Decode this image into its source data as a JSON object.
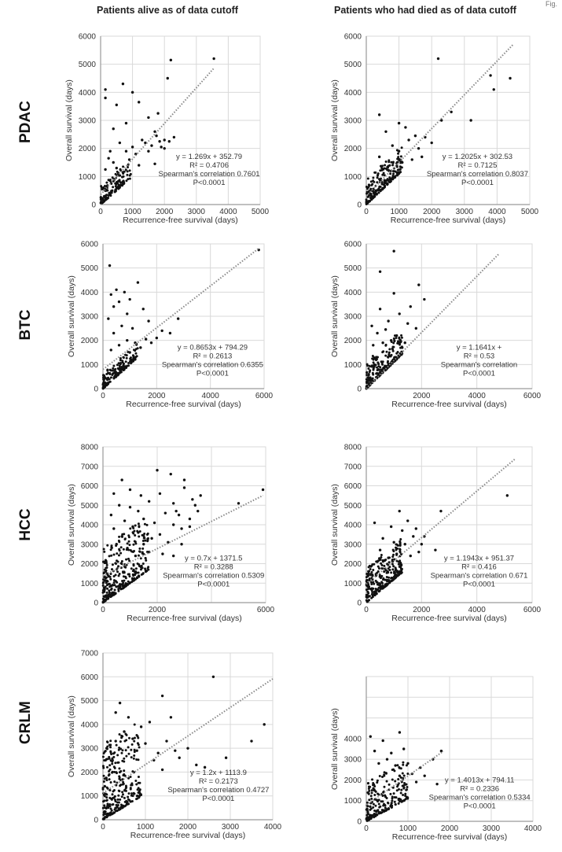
{
  "figure": {
    "label": "Fig.",
    "column_titles": [
      "Patients alive as of data cutoff",
      "Patients who had died as of data cutoff"
    ],
    "row_labels": [
      "PDAC",
      "BTC",
      "HCC",
      "CRLM"
    ],
    "colors": {
      "points": "#111111",
      "trendline": "#8a8a8a",
      "grid": "#d9d9d9",
      "axis": "#9a9a9a"
    }
  },
  "chart_data": [
    {
      "type": "scatter",
      "row": "PDAC",
      "column": "Patients alive as of data cutoff",
      "xlabel": "Recurrence-free survival (days)",
      "ylabel": "Overall survival (days)",
      "xlim": [
        0,
        5000
      ],
      "ylim": [
        0,
        6000
      ],
      "xticks": [
        0,
        1000,
        2000,
        3000,
        4000,
        5000
      ],
      "yticks": [
        0,
        1000,
        2000,
        3000,
        4000,
        5000,
        6000
      ],
      "grid": true,
      "trendline": {
        "slope": 1.269,
        "intercept": 352.79,
        "x_range": [
          0,
          3550
        ]
      },
      "annotations": [
        "y = 1.269x + 352.79",
        "R² = 0.4706",
        "Spearman's correlation 0.7601",
        "P<0.0001"
      ],
      "points": [
        [
          2200,
          5150
        ],
        [
          3550,
          5200
        ],
        [
          2100,
          4500
        ],
        [
          150,
          4100
        ],
        [
          150,
          3800
        ],
        [
          700,
          4300
        ],
        [
          1000,
          4000
        ],
        [
          500,
          3550
        ],
        [
          1200,
          3650
        ],
        [
          1500,
          3100
        ],
        [
          1800,
          3250
        ],
        [
          800,
          2900
        ],
        [
          400,
          2700
        ],
        [
          1300,
          2300
        ],
        [
          1700,
          2600
        ],
        [
          2000,
          2300
        ],
        [
          2300,
          2400
        ],
        [
          2150,
          2250
        ],
        [
          600,
          2200
        ],
        [
          1000,
          2050
        ],
        [
          1500,
          1900
        ],
        [
          300,
          1900
        ],
        [
          900,
          1600
        ],
        [
          400,
          1500
        ],
        [
          1200,
          1400
        ],
        [
          150,
          1250
        ],
        [
          700,
          1150
        ],
        [
          1900,
          2050
        ],
        [
          1600,
          2100
        ],
        [
          1100,
          1800
        ],
        [
          1700,
          1450
        ],
        [
          2000,
          2000
        ],
        [
          1850,
          2250
        ],
        [
          500,
          1300
        ],
        [
          250,
          1650
        ],
        [
          800,
          1900
        ],
        [
          1400,
          2200
        ],
        [
          1750,
          2450
        ]
      ],
      "dense_band": {
        "x_max": 950,
        "slope": 1.0,
        "spread": 650,
        "count": 150
      }
    },
    {
      "type": "scatter",
      "row": "PDAC",
      "column": "Patients who had died as of data cutoff",
      "xlabel": "Recurrence-free survival (days)",
      "ylabel": "Overall survival (days)",
      "xlim": [
        0,
        5000
      ],
      "ylim": [
        0,
        6000
      ],
      "xticks": [
        0,
        1000,
        2000,
        3000,
        4000,
        5000
      ],
      "yticks": [
        0,
        1000,
        2000,
        3000,
        4000,
        5000,
        6000
      ],
      "xtick_labels": [
        "0",
        "1000",
        "2000",
        "3000",
        "4000",
        "5000"
      ],
      "grid": true,
      "trendline": {
        "slope": 1.2025,
        "intercept": 302.53,
        "x_range": [
          0,
          4500
        ]
      },
      "annotations": [
        "y = 1.2025x + 302.53",
        "R² = 0.7125",
        "Spearman's correlation 0.8037",
        "P<0.0001"
      ],
      "points": [
        [
          2200,
          5200
        ],
        [
          3800,
          4600
        ],
        [
          4400,
          4500
        ],
        [
          3900,
          4100
        ],
        [
          2600,
          3300
        ],
        [
          3200,
          3000
        ],
        [
          400,
          3200
        ],
        [
          1000,
          2900
        ],
        [
          1200,
          2750
        ],
        [
          600,
          2600
        ],
        [
          1500,
          2450
        ],
        [
          1800,
          2400
        ],
        [
          2000,
          2200
        ],
        [
          800,
          2100
        ],
        [
          1300,
          2300
        ],
        [
          1600,
          2000
        ],
        [
          2300,
          3000
        ],
        [
          1000,
          1900
        ],
        [
          1700,
          1700
        ],
        [
          400,
          1700
        ],
        [
          1100,
          1500
        ],
        [
          1400,
          1600
        ]
      ],
      "dense_band": {
        "x_max": 1100,
        "slope": 1.1,
        "spread": 900,
        "count": 220
      }
    },
    {
      "type": "scatter",
      "row": "BTC",
      "column": "Patients alive as of data cutoff",
      "xlabel": "Recurrence-free survival (days)",
      "ylabel": "Overall survival (days)",
      "xlim": [
        0,
        6000
      ],
      "ylim": [
        0,
        6000
      ],
      "xticks": [
        0,
        2000,
        4000,
        6000
      ],
      "yticks": [
        0,
        1000,
        2000,
        3000,
        4000,
        5000,
        6000
      ],
      "grid": true,
      "trendline": {
        "slope": 0.8653,
        "intercept": 794.29,
        "x_range": [
          0,
          5800
        ]
      },
      "annotations": [
        "y = 0.8653x + 794.29",
        "R² = 0.2613",
        "Spearman's correlation 0.6355",
        "P<0.0001"
      ],
      "points": [
        [
          250,
          5100
        ],
        [
          5800,
          5750
        ],
        [
          1300,
          4400
        ],
        [
          500,
          4100
        ],
        [
          800,
          4000
        ],
        [
          300,
          3900
        ],
        [
          600,
          3600
        ],
        [
          1000,
          3700
        ],
        [
          400,
          3400
        ],
        [
          1500,
          3300
        ],
        [
          900,
          3100
        ],
        [
          200,
          2900
        ],
        [
          700,
          2600
        ],
        [
          1100,
          2500
        ],
        [
          1700,
          2800
        ],
        [
          2200,
          2400
        ],
        [
          2500,
          2300
        ],
        [
          2800,
          2900
        ],
        [
          400,
          2300
        ],
        [
          900,
          2000
        ],
        [
          1200,
          1900
        ],
        [
          1600,
          2050
        ],
        [
          2000,
          2100
        ],
        [
          600,
          1800
        ],
        [
          1400,
          1700
        ],
        [
          300,
          1600
        ],
        [
          1000,
          1500
        ],
        [
          1800,
          1900
        ]
      ],
      "dense_band": {
        "x_max": 1300,
        "slope": 1.0,
        "spread": 650,
        "count": 170
      }
    },
    {
      "type": "scatter",
      "row": "BTC",
      "column": "Patients who had died as of data cutoff",
      "xlabel": "Recurrence-free survival (days)",
      "ylabel": "Overall survival (days)",
      "xlim": [
        0,
        6000
      ],
      "ylim": [
        0,
        6000
      ],
      "xticks": [
        0,
        2000,
        4000,
        6000
      ],
      "yticks": [
        0,
        1000,
        2000,
        3000,
        4000,
        5000,
        6000
      ],
      "xtick_labels": [
        "",
        "2000",
        "4000",
        "6000"
      ],
      "grid": true,
      "trendline": {
        "slope": 1.1641,
        "intercept": null,
        "x_range": [
          0,
          4800
        ]
      },
      "annotations": [
        "y = 1.1641x +",
        "R² = 0.53",
        "Spearman's correlation",
        "P<0.0001"
      ],
      "points": [
        [
          1000,
          5700
        ],
        [
          500,
          4850
        ],
        [
          1900,
          4300
        ],
        [
          2100,
          3700
        ],
        [
          1000,
          3950
        ],
        [
          1600,
          3400
        ],
        [
          500,
          3300
        ],
        [
          1200,
          3100
        ],
        [
          800,
          2800
        ],
        [
          1500,
          2700
        ],
        [
          200,
          2600
        ],
        [
          1800,
          2500
        ],
        [
          700,
          2450
        ],
        [
          400,
          2300
        ],
        [
          1100,
          2200
        ],
        [
          900,
          2000
        ],
        [
          1400,
          1900
        ],
        [
          600,
          1900
        ],
        [
          1300,
          1700
        ],
        [
          250,
          1800
        ]
      ],
      "dense_band": {
        "x_max": 1300,
        "slope": 1.1,
        "spread": 1100,
        "count": 230
      }
    },
    {
      "type": "scatter",
      "row": "HCC",
      "column": "Patients alive as of data cutoff",
      "xlabel": "Recurrence-free survival (days)",
      "ylabel": "Overall survival (days)",
      "xlim": [
        0,
        6000
      ],
      "ylim": [
        0,
        8000
      ],
      "xticks": [
        0,
        2000,
        4000,
        6000
      ],
      "yticks": [
        0,
        1000,
        2000,
        3000,
        4000,
        5000,
        6000,
        7000,
        8000
      ],
      "xtick_labels": [
        "0",
        "2000",
        "",
        "6000"
      ],
      "grid": true,
      "trendline": {
        "slope": 0.7,
        "intercept": 1371.5,
        "x_range": [
          0,
          5900
        ]
      },
      "annotations": [
        "y = 0.7x + 1371.5",
        "R² = 0.3288",
        "Spearman's correlation 0.5309",
        "P<0.0001"
      ],
      "points": [
        [
          2000,
          6800
        ],
        [
          2500,
          6600
        ],
        [
          700,
          6300
        ],
        [
          3000,
          6300
        ],
        [
          3000,
          5900
        ],
        [
          5900,
          5800
        ],
        [
          5000,
          5100
        ],
        [
          3600,
          5500
        ],
        [
          3400,
          5000
        ],
        [
          1000,
          5800
        ],
        [
          1400,
          5500
        ],
        [
          2100,
          5600
        ],
        [
          1700,
          5200
        ],
        [
          2600,
          5100
        ],
        [
          1000,
          4900
        ],
        [
          400,
          5600
        ],
        [
          600,
          5000
        ],
        [
          2300,
          4600
        ],
        [
          2800,
          4500
        ],
        [
          3200,
          4300
        ],
        [
          1500,
          4300
        ],
        [
          1900,
          4100
        ],
        [
          2600,
          4000
        ],
        [
          3200,
          3900
        ],
        [
          2900,
          3800
        ],
        [
          1300,
          3600
        ],
        [
          2100,
          3500
        ],
        [
          300,
          4500
        ],
        [
          800,
          4200
        ],
        [
          1100,
          3900
        ],
        [
          1800,
          3300
        ],
        [
          2400,
          3100
        ],
        [
          2900,
          3000
        ],
        [
          1500,
          3000
        ],
        [
          700,
          3400
        ],
        [
          900,
          2800
        ],
        [
          1700,
          2600
        ],
        [
          2200,
          2500
        ],
        [
          2600,
          2400
        ],
        [
          400,
          3800
        ],
        [
          1200,
          2400
        ],
        [
          500,
          3000
        ],
        [
          3500,
          4700
        ],
        [
          3300,
          5300
        ],
        [
          1300,
          4700
        ],
        [
          2700,
          4700
        ]
      ],
      "dense_band": {
        "x_max": 1700,
        "slope": 1.0,
        "spread": 2800,
        "count": 320
      }
    },
    {
      "type": "scatter",
      "row": "HCC",
      "column": "Patients who had died as of data cutoff",
      "xlabel": "Recurrence-free survival (days)",
      "ylabel": "Overall survival (days)",
      "xlim": [
        0,
        6000
      ],
      "ylim": [
        0,
        8000
      ],
      "xticks": [
        0,
        2000,
        4000,
        6000
      ],
      "yticks": [
        0,
        1000,
        2000,
        3000,
        4000,
        5000,
        6000,
        7000,
        8000
      ],
      "grid": true,
      "trendline": {
        "slope": 1.1943,
        "intercept": 951.37,
        "x_range": [
          0,
          5400
        ]
      },
      "annotations": [
        "y = 1.1943x + 951.37",
        "R² = 0.416",
        "Spearman's correlation 0.671",
        "P<0.0001"
      ],
      "points": [
        [
          2700,
          4700
        ],
        [
          1200,
          4700
        ],
        [
          5100,
          5500
        ],
        [
          1500,
          4200
        ],
        [
          900,
          3900
        ],
        [
          300,
          4100
        ],
        [
          1800,
          3800
        ],
        [
          1300,
          3700
        ],
        [
          1700,
          3400
        ],
        [
          2100,
          3400
        ],
        [
          2500,
          2700
        ],
        [
          600,
          3300
        ],
        [
          1000,
          3100
        ],
        [
          1400,
          3000
        ],
        [
          2000,
          3000
        ],
        [
          500,
          2700
        ],
        [
          1100,
          2500
        ],
        [
          1600,
          2400
        ],
        [
          800,
          2300
        ],
        [
          400,
          2100
        ],
        [
          1200,
          2100
        ],
        [
          1900,
          2600
        ]
      ],
      "dense_band": {
        "x_max": 1300,
        "slope": 1.2,
        "spread": 1800,
        "count": 280
      }
    },
    {
      "type": "scatter",
      "row": "CRLM",
      "column": "Patients alive as of data cutoff",
      "xlabel": "Recurrence-free survival (days)",
      "ylabel": "Overall survival (days)",
      "xlim": [
        0,
        4000
      ],
      "ylim": [
        0,
        7000
      ],
      "xticks": [
        0,
        1000,
        2000,
        3000,
        4000
      ],
      "yticks": [
        0,
        1000,
        2000,
        3000,
        4000,
        5000,
        6000,
        7000
      ],
      "grid": true,
      "trendline": {
        "slope": 1.2,
        "intercept": 1113.9,
        "x_range": [
          0,
          4000
        ]
      },
      "annotations": [
        "y = 1.2x + 1113.9",
        "R² = 0.2173",
        "Spearman's correlation 0.4727",
        "P<0.0001"
      ],
      "points": [
        [
          2600,
          6000
        ],
        [
          1400,
          5200
        ],
        [
          400,
          4900
        ],
        [
          1600,
          4300
        ],
        [
          3800,
          4000
        ],
        [
          300,
          4500
        ],
        [
          600,
          4300
        ],
        [
          900,
          3900
        ],
        [
          1100,
          4100
        ],
        [
          3500,
          3300
        ],
        [
          2900,
          2600
        ],
        [
          1800,
          2600
        ],
        [
          2200,
          2300
        ],
        [
          1300,
          2800
        ],
        [
          500,
          3700
        ],
        [
          700,
          3400
        ],
        [
          1000,
          3200
        ],
        [
          1500,
          3300
        ],
        [
          800,
          2900
        ],
        [
          1200,
          2500
        ],
        [
          300,
          3300
        ],
        [
          1700,
          2900
        ],
        [
          2000,
          3000
        ],
        [
          2400,
          2200
        ],
        [
          1400,
          2100
        ]
      ],
      "dense_band": {
        "x_max": 900,
        "slope": 1.1,
        "spread": 3200,
        "count": 300
      }
    },
    {
      "type": "scatter",
      "row": "CRLM",
      "column": "Patients who had died as of data cutoff",
      "xlabel": "Recurrence-free survival (days)",
      "ylabel": "Overall survival (days)",
      "xlim": [
        0,
        4000
      ],
      "ylim": [
        0,
        7000
      ],
      "xticks": [
        0,
        1000,
        2000,
        3000,
        4000
      ],
      "yticks": [
        0,
        1000,
        2000,
        3000,
        4000,
        5000,
        6000,
        7000
      ],
      "ytick_labels": [
        "0",
        "1000",
        "2000",
        "3000",
        "4000",
        "",
        "",
        ""
      ],
      "grid": true,
      "trendline": {
        "slope": 1.4013,
        "intercept": 794.11,
        "x_range": [
          0,
          1850
        ]
      },
      "annotations": [
        "y = 1.4013x + 794.11",
        "R² = 0.2336",
        "Spearman's correlation 0.5334",
        "P<0.0001"
      ],
      "points": [
        [
          800,
          4300
        ],
        [
          100,
          4100
        ],
        [
          400,
          3900
        ],
        [
          1800,
          3400
        ],
        [
          1600,
          3000
        ],
        [
          600,
          3300
        ],
        [
          900,
          3500
        ],
        [
          200,
          3400
        ],
        [
          500,
          3000
        ],
        [
          1000,
          2800
        ],
        [
          1300,
          2600
        ],
        [
          700,
          2700
        ],
        [
          300,
          2800
        ],
        [
          1100,
          2300
        ],
        [
          1400,
          2200
        ],
        [
          800,
          2200
        ],
        [
          1700,
          1800
        ],
        [
          1200,
          1900
        ]
      ],
      "dense_band": {
        "x_max": 1000,
        "slope": 1.1,
        "spread": 1900,
        "count": 220
      }
    }
  ]
}
